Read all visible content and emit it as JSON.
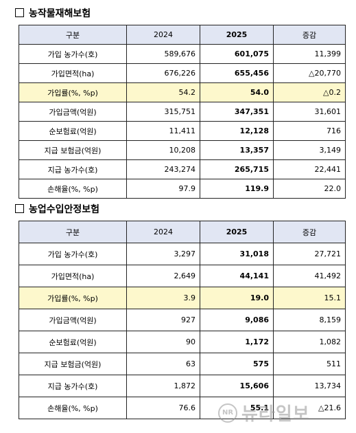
{
  "sections": [
    {
      "title": "농작물재해보험",
      "headers": [
        "구분",
        "2024",
        "2025",
        "증감"
      ],
      "rows": [
        {
          "label": "가입 농가수(호)",
          "y2024": "589,676",
          "y2025": "601,075",
          "change": "11,399",
          "highlight": false
        },
        {
          "label": "가입면적(ha)",
          "y2024": "676,226",
          "y2025": "655,456",
          "change": "△20,770",
          "highlight": false
        },
        {
          "label": "가입률(%, %p)",
          "y2024": "54.2",
          "y2025": "54.0",
          "change": "△0.2",
          "highlight": true
        },
        {
          "label": "가입금액(억원)",
          "y2024": "315,751",
          "y2025": "347,351",
          "change": "31,601",
          "highlight": false
        },
        {
          "label": "순보험료(억원)",
          "y2024": "11,411",
          "y2025": "12,128",
          "change": "716",
          "highlight": false
        },
        {
          "label": "지급 보험금(억원)",
          "y2024": "10,208",
          "y2025": "13,357",
          "change": "3,149",
          "highlight": false
        },
        {
          "label": "지급 농가수(호)",
          "y2024": "243,274",
          "y2025": "265,715",
          "change": "22,441",
          "highlight": false
        },
        {
          "label": "손해율(%, %p)",
          "y2024": "97.9",
          "y2025": "119.9",
          "change": "22.0",
          "highlight": false
        }
      ]
    },
    {
      "title": "농업수입안정보험",
      "headers": [
        "구분",
        "2024",
        "2025",
        "증감"
      ],
      "rows": [
        {
          "label": "가입 농가수(호)",
          "y2024": "3,297",
          "y2025": "31,018",
          "change": "27,721",
          "highlight": false
        },
        {
          "label": "가입면적(ha)",
          "y2024": "2,649",
          "y2025": "44,141",
          "change": "41,492",
          "highlight": false
        },
        {
          "label": "가입률(%, %p)",
          "y2024": "3.9",
          "y2025": "19.0",
          "change": "15.1",
          "highlight": true
        },
        {
          "label": "가입금액(억원)",
          "y2024": "927",
          "y2025": "9,086",
          "change": "8,159",
          "highlight": false
        },
        {
          "label": "순보험료(억원)",
          "y2024": "90",
          "y2025": "1,172",
          "change": "1,082",
          "highlight": false
        },
        {
          "label": "지급 보험금(억원)",
          "y2024": "63",
          "y2025": "575",
          "change": "511",
          "highlight": false
        },
        {
          "label": "지급 농가수(호)",
          "y2024": "1,872",
          "y2025": "15,606",
          "change": "13,734",
          "highlight": false
        },
        {
          "label": "손해율(%, %p)",
          "y2024": "76.6",
          "y2025": "55.1",
          "change": "△21.6",
          "highlight": false
        }
      ]
    }
  ],
  "watermark": {
    "logo": "NR",
    "text": "뉴라일보"
  }
}
